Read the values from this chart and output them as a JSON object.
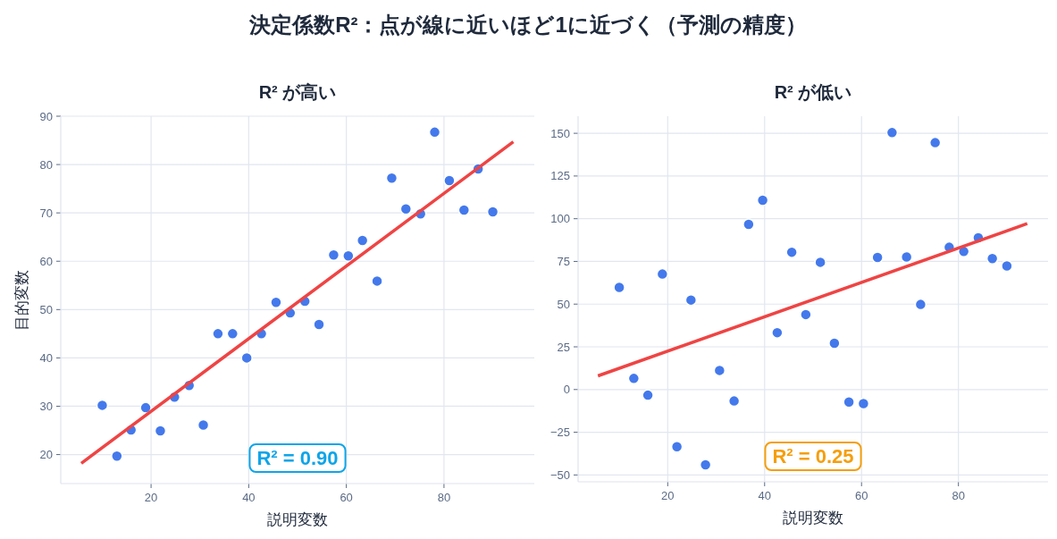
{
  "chart_data": [
    {
      "type": "scatter",
      "title": "R² が高い",
      "xlabel": "説明変数",
      "ylabel": "目的変数",
      "xlim": [
        1.5,
        98.5
      ],
      "ylim": [
        14,
        90
      ],
      "xticks": [
        20,
        40,
        60,
        80
      ],
      "yticks": [
        20,
        30,
        40,
        50,
        60,
        70,
        80,
        90
      ],
      "grid": true,
      "x": [
        10,
        13,
        15.9,
        18.9,
        21.9,
        24.8,
        27.8,
        30.7,
        33.7,
        36.7,
        39.6,
        42.6,
        45.6,
        48.5,
        51.5,
        54.4,
        57.4,
        60.4,
        63.3,
        66.3,
        69.3,
        72.2,
        75.2,
        78.1,
        81.1,
        84.1,
        87,
        90
      ],
      "series": [
        {
          "color": "#4479ec",
          "marker": "circle",
          "values": [
            30.2,
            19.7,
            25.1,
            29.7,
            24.9,
            31.9,
            34.3,
            26.1,
            45,
            45,
            40,
            45,
            51.5,
            49.3,
            51.7,
            46.9,
            61.3,
            61.1,
            64.3,
            55.9,
            77.2,
            70.8,
            69.8,
            86.7,
            76.7,
            70.6,
            79.1,
            70.2
          ]
        },
        {
          "type": "line",
          "marker": "none",
          "color": "#ef4444",
          "x": [
            5.7,
            94.2
          ],
          "values": [
            18.2,
            84.7
          ]
        }
      ],
      "annotations": [
        "決定係数R²：点が線に近いほど1に近づく（予測の精度）",
        "R² = 0.90"
      ]
    },
    {
      "type": "scatter",
      "title": "R² が低い",
      "xlabel": "説明変数",
      "xlim": [
        1.5,
        98.5
      ],
      "ylim": [
        -54,
        160
      ],
      "xticks": [
        20,
        40,
        60,
        80
      ],
      "yticks": [
        -50,
        -25,
        0,
        25,
        50,
        75,
        100,
        125,
        150
      ],
      "grid": true,
      "x": [
        10,
        13,
        15.9,
        18.9,
        21.9,
        24.8,
        27.8,
        30.7,
        33.7,
        36.7,
        39.6,
        42.6,
        45.6,
        48.5,
        51.5,
        54.4,
        57.4,
        60.4,
        63.3,
        66.3,
        69.3,
        72.2,
        75.2,
        78.1,
        81.1,
        84.1,
        87,
        90
      ],
      "series": [
        {
          "color": "#4479ec",
          "marker": "circle",
          "values": [
            59.8,
            6.5,
            -3.3,
            67.6,
            -33.5,
            52.4,
            -44.1,
            11.2,
            -6.7,
            96.7,
            110.8,
            33.3,
            80.4,
            43.9,
            74.5,
            27.1,
            -7.3,
            -8.2,
            77.3,
            150.4,
            77.6,
            49.8,
            144.5,
            83.3,
            80.8,
            88.8,
            76.7,
            72.4
          ]
        },
        {
          "type": "line",
          "marker": "none",
          "color": "#ef4444",
          "x": [
            5.6,
            94.2
          ],
          "values": [
            8,
            97.1
          ]
        }
      ],
      "annotations": [
        "R² = 0.25"
      ]
    }
  ]
}
